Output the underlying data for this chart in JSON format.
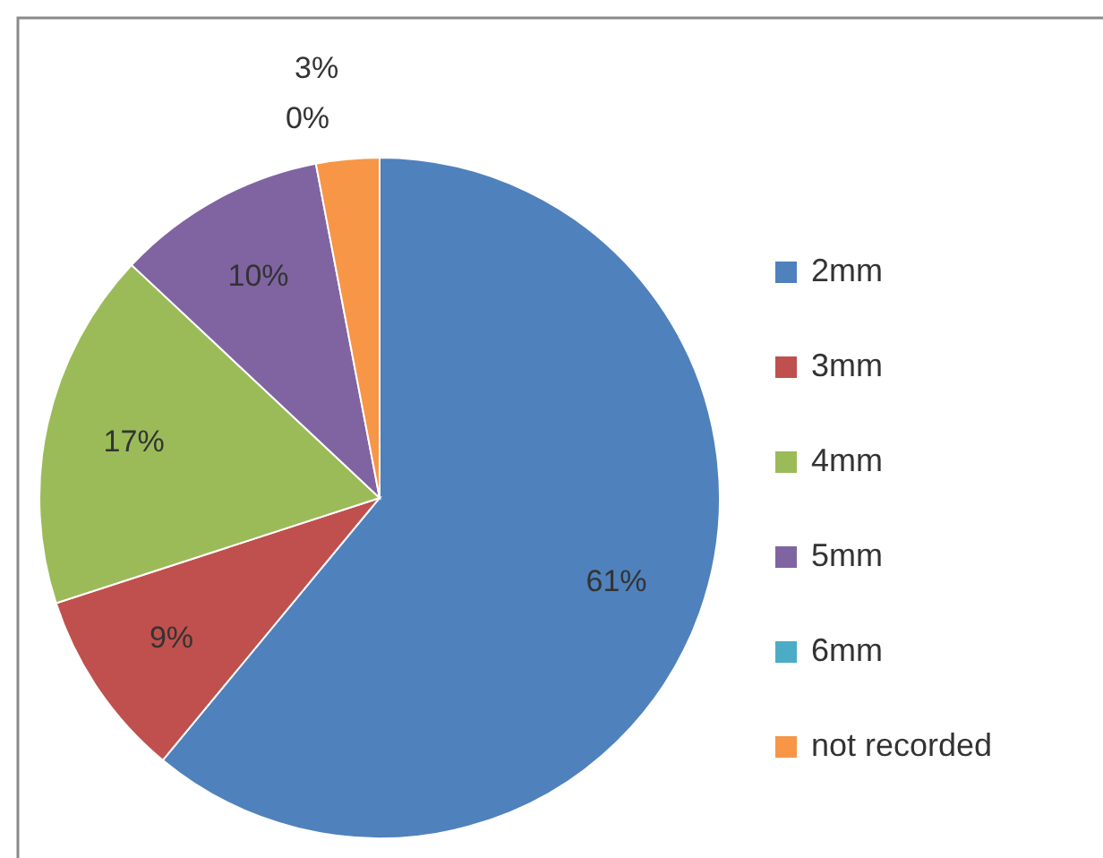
{
  "chart_data": {
    "type": "pie",
    "categories": [
      "2mm",
      "3mm",
      "4mm",
      "5mm",
      "6mm",
      "not recorded"
    ],
    "values": [
      61,
      9,
      17,
      10,
      0,
      3
    ],
    "value_labels": [
      "61%",
      "9%",
      "17%",
      "10%",
      "0%",
      "3%"
    ],
    "colors": [
      "#4f81bd",
      "#c0504d",
      "#9bbb59",
      "#8064a2",
      "#4bacc6",
      "#f79646"
    ],
    "legend": "right"
  }
}
